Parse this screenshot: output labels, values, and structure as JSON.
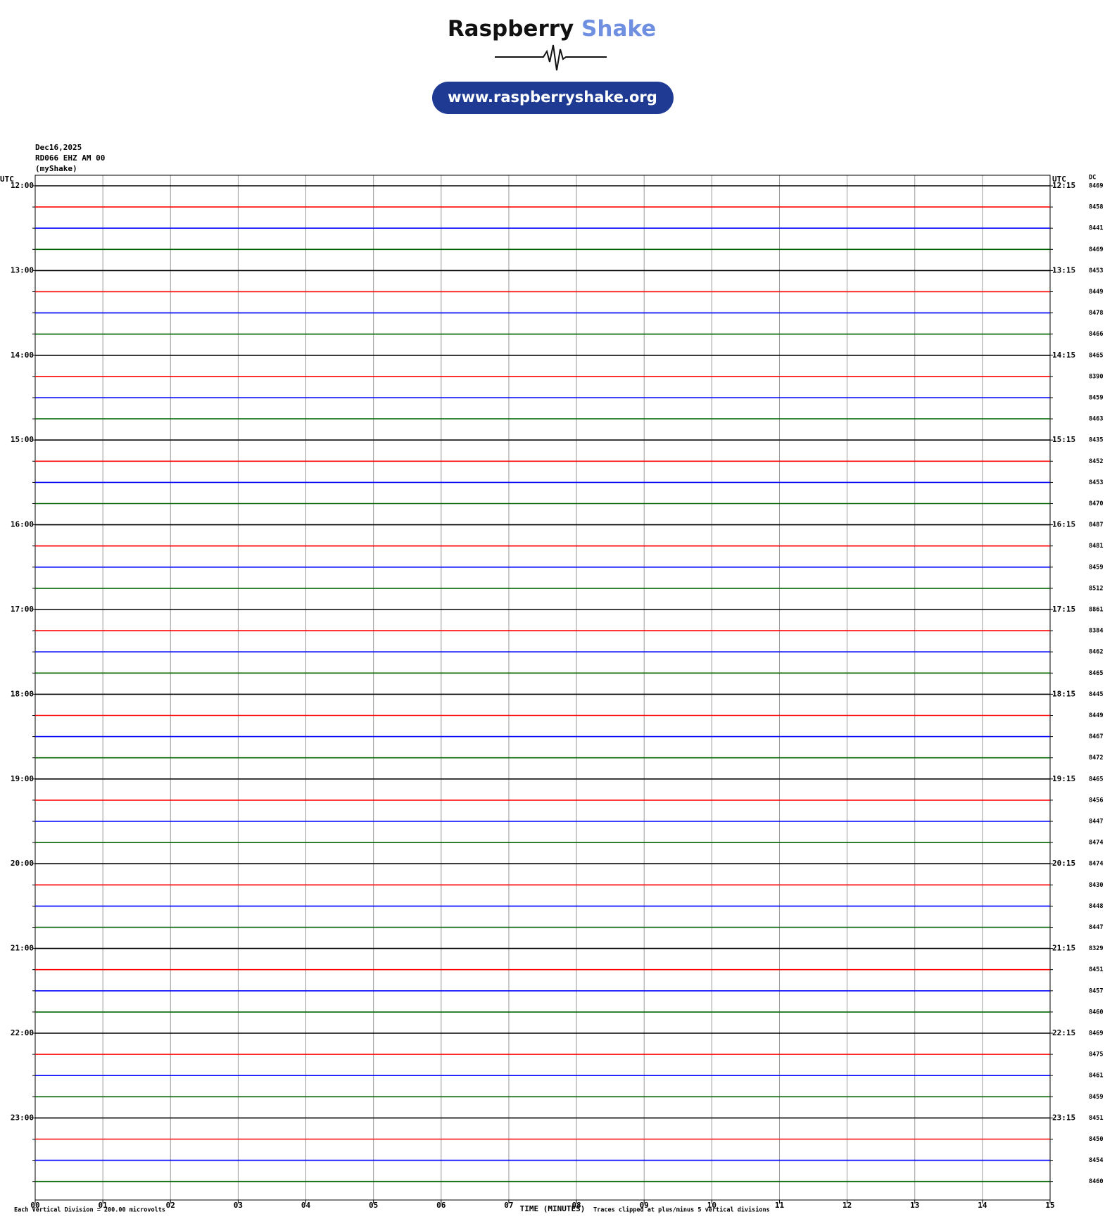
{
  "header": {
    "logo_word_1": "Raspberry",
    "logo_word_2": "Shake",
    "url": "www.raspberryshake.org"
  },
  "plot": {
    "date": "Dec16,2025",
    "station": "RD066 EHZ AM 00",
    "source": "(myShake)",
    "left_axis_label": "UTC",
    "right_axis_label": "UTC",
    "dc_label": "DC",
    "hour_labels_left": [
      "12:00",
      "13:00",
      "14:00",
      "15:00",
      "16:00",
      "17:00",
      "18:00",
      "19:00",
      "20:00",
      "21:00",
      "22:00",
      "23:00"
    ],
    "hour_labels_right": [
      "12:15",
      "13:15",
      "14:15",
      "15:15",
      "16:15",
      "17:15",
      "18:15",
      "19:15",
      "20:15",
      "21:15",
      "22:15",
      "23:15"
    ],
    "dc_values": [
      8469,
      8458,
      8441,
      8469,
      8453,
      8449,
      8478,
      8466,
      8465,
      8390,
      8459,
      8463,
      8435,
      8452,
      8453,
      8470,
      8487,
      8481,
      8459,
      8512,
      8861,
      8384,
      8462,
      8465,
      8445,
      8449,
      8467,
      8472,
      8465,
      8456,
      8447,
      8474,
      8474,
      8430,
      8448,
      8447,
      8329,
      8451,
      8457,
      8460,
      8469,
      8475,
      8461,
      8459,
      8451,
      8450,
      8454,
      8460
    ],
    "trace_colors": [
      "#000000",
      "#ff0000",
      "#0000ff",
      "#006400"
    ],
    "x_tick_labels": [
      "00",
      "01",
      "02",
      "03",
      "04",
      "05",
      "06",
      "07",
      "08",
      "09",
      "10",
      "11",
      "12",
      "13",
      "14",
      "15"
    ],
    "x_axis_label": "TIME (MINUTES)",
    "footer_left": "Each Vertical Division =  200.00 microvolts",
    "footer_right": "Traces clipped at plus/minus 5 vertical divisions"
  }
}
